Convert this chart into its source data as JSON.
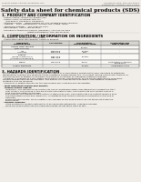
{
  "bg_color": "#f0ede8",
  "title": "Safety data sheet for chemical products (SDS)",
  "header_left": "Product Name: Lithium Ion Battery Cell",
  "header_right_line1": "Substance Code: SRS-049-00010",
  "header_right_line2": "Established / Revision: Dec.1.2010",
  "section1_title": "1. PRODUCT AND COMPANY IDENTIFICATION",
  "section1_items": [
    "· Product name: Lithium Ion Battery Cell",
    "· Product code: Cylindrical-type cell",
    "    (CR18650U, CR18650U, CR18650A)",
    "· Company name:    Sanyo Electric Co., Ltd., Mobile Energy Company",
    "· Address:    2001  Kamitosagun, Sumoto-City, Hyogo, Japan",
    "· Telephone number :  +81-(799)-20-4111",
    "· Fax number:  +81-1-799-26-4120",
    "· Emergency telephone number (Weekday): +81-799-20-3962",
    "                                    (Night and holiday): +81-799-26-3120"
  ],
  "section2_title": "2. COMPOSITION / INFORMATION ON INGREDIENTS",
  "section2_sub": "· Substance or preparation: Preparation",
  "section2_sub2": "· Information about the chemical nature of product:",
  "table_headers": [
    "Component\nChemical name",
    "CAS number",
    "Concentration /\nConcentration range",
    "Classification and\nhazard labeling"
  ],
  "row_data": [
    [
      "Lithium cobalt tantalite\n(LiMn-Co-Fe-O4)",
      "-",
      "30-60%",
      "-"
    ],
    [
      "Iron\nAluminum",
      "7439-89-6\n7429-90-5",
      "10-20%\n2.6%",
      "-\n-"
    ],
    [
      "Graphite\n(Mixed-in graphite-1)\n(All-Mixed-in graphite-2)",
      "7782-42-5\n7782-44-0",
      "10-20%",
      "-"
    ],
    [
      "Copper",
      "7440-50-8",
      "5-15%",
      "Sensitization of the skin\ngroup No.2"
    ],
    [
      "Organic electrolyte",
      "-",
      "10-20%",
      "Inflammable liquid"
    ]
  ],
  "section3_title": "3. HAZARDS IDENTIFICATION",
  "section3_para": [
    "For the battery cell, chemical substances are stored in a hermetically sealed metal case, designed to withstand",
    "temperature changes and pressure-stress conditions during normal use. As a result, during normal use, there is no",
    "physical danger of ignition or explosion and there is no danger of hazardous materials leakage.",
    "  However, if exposed to a fire, added mechanical shocks, decomposed, shrink electric without any measures,",
    "the gas release vent can be operated. The battery cell case will be breached or fire-patterns, hazardous",
    "materials may be released.",
    "  Moreover, if heated strongly by the surrounding fire, solid gas may be emitted."
  ],
  "section3_bullet1": "· Most important hazard and effects:",
  "section3_sub1a": "Human health effects:",
  "section3_sub1_items": [
    "Inhalation: The release of the electrolyte has an anesthesia action and stimulates a respiratory tract.",
    "Skin contact: The release of the electrolyte stimulates a skin. The electrolyte skin contact causes a",
    "sore and stimulation on the skin.",
    "Eye contact: The release of the electrolyte stimulates eyes. The electrolyte eye contact causes a sore",
    "and stimulation on the eye. Especially, a substance that causes a strong inflammation of the eye is",
    "contained.",
    "Environmental effects: Since a battery cell remains in the environment, do not throw out it into the",
    "environment."
  ],
  "section3_bullet2": "· Specific hazards:",
  "section3_sub2_items": [
    "If the electrolyte contacts with water, it will generate detrimental hydrogen fluoride.",
    "Since the used electrolyte is inflammable liquid, do not bring close to fire."
  ]
}
